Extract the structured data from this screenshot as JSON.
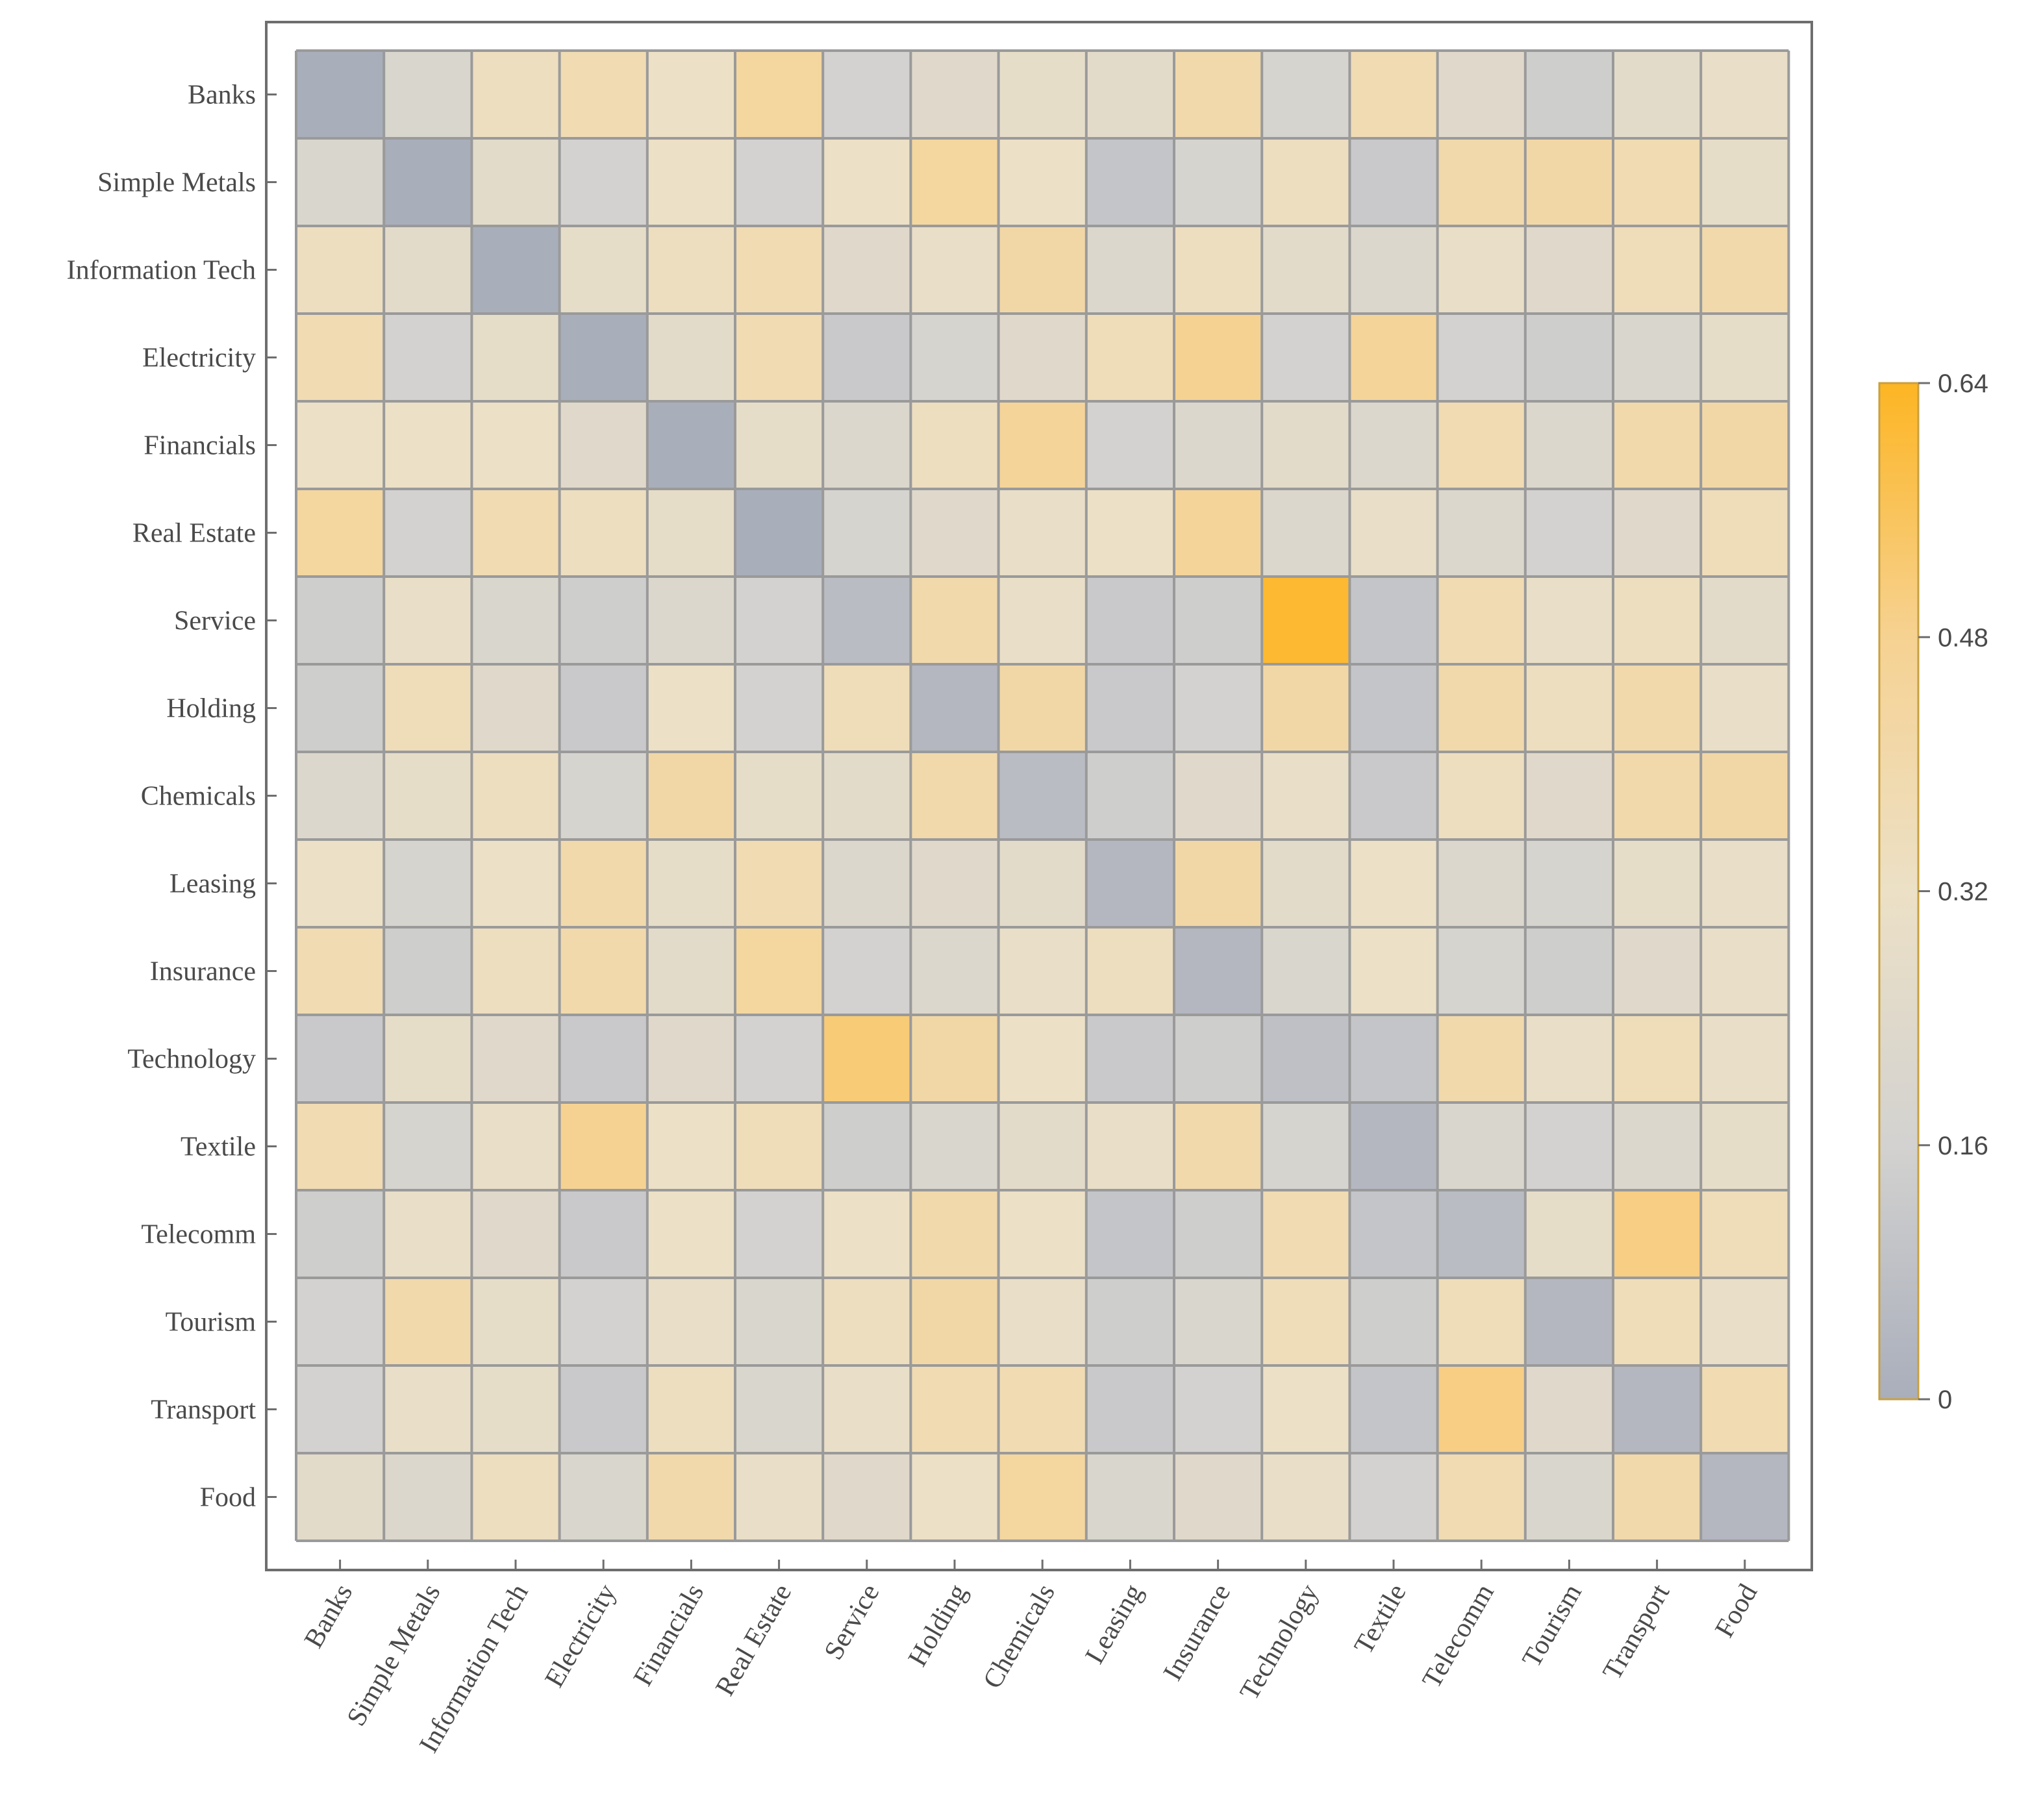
{
  "chart_data": {
    "type": "heatmap",
    "title": "",
    "xlabel": "",
    "ylabel": "",
    "rows": [
      "Banks",
      "Simple Metals",
      "Information Tech",
      "Electricity",
      "Financials",
      "Real Estate",
      "Service",
      "Holding",
      "Chemicals",
      "Leasing",
      "Insurance",
      "Technology",
      "Textile",
      "Telecomm",
      "Tourism",
      "Transport",
      "Food"
    ],
    "columns": [
      "Banks",
      "Simple Metals",
      "Information Tech",
      "Electricity",
      "Financials",
      "Real Estate",
      "Service",
      "Holding",
      "Chemicals",
      "Leasing",
      "Insurance",
      "Technology",
      "Textile",
      "Telecomm",
      "Tourism",
      "Transport",
      "Food"
    ],
    "values": [
      [
        0.0,
        0.2,
        0.34,
        0.38,
        0.32,
        0.44,
        0.16,
        0.24,
        0.28,
        0.26,
        0.4,
        0.18,
        0.38,
        0.24,
        0.14,
        0.26,
        0.3
      ],
      [
        0.2,
        0.0,
        0.26,
        0.16,
        0.32,
        0.16,
        0.32,
        0.44,
        0.32,
        0.1,
        0.18,
        0.34,
        0.12,
        0.4,
        0.42,
        0.38,
        0.28
      ],
      [
        0.34,
        0.26,
        0.0,
        0.28,
        0.34,
        0.38,
        0.24,
        0.3,
        0.42,
        0.22,
        0.34,
        0.26,
        0.22,
        0.3,
        0.24,
        0.36,
        0.4
      ],
      [
        0.38,
        0.16,
        0.28,
        0.0,
        0.26,
        0.38,
        0.12,
        0.18,
        0.24,
        0.36,
        0.48,
        0.16,
        0.46,
        0.16,
        0.14,
        0.2,
        0.28
      ],
      [
        0.32,
        0.32,
        0.32,
        0.24,
        0.0,
        0.28,
        0.22,
        0.34,
        0.46,
        0.16,
        0.22,
        0.26,
        0.22,
        0.38,
        0.22,
        0.4,
        0.42
      ],
      [
        0.44,
        0.16,
        0.38,
        0.34,
        0.28,
        0.0,
        0.18,
        0.24,
        0.3,
        0.32,
        0.46,
        0.22,
        0.3,
        0.22,
        0.16,
        0.24,
        0.36
      ],
      [
        0.14,
        0.3,
        0.2,
        0.14,
        0.22,
        0.16,
        0.06,
        0.4,
        0.3,
        0.12,
        0.14,
        0.62,
        0.1,
        0.38,
        0.3,
        0.34,
        0.26
      ],
      [
        0.14,
        0.36,
        0.24,
        0.12,
        0.32,
        0.16,
        0.36,
        0.04,
        0.42,
        0.12,
        0.16,
        0.42,
        0.1,
        0.4,
        0.34,
        0.4,
        0.3
      ],
      [
        0.22,
        0.28,
        0.34,
        0.18,
        0.42,
        0.28,
        0.26,
        0.4,
        0.06,
        0.14,
        0.24,
        0.3,
        0.12,
        0.34,
        0.24,
        0.4,
        0.42
      ],
      [
        0.32,
        0.18,
        0.32,
        0.4,
        0.28,
        0.38,
        0.22,
        0.24,
        0.26,
        0.04,
        0.42,
        0.26,
        0.32,
        0.22,
        0.18,
        0.28,
        0.3
      ],
      [
        0.38,
        0.14,
        0.34,
        0.4,
        0.26,
        0.44,
        0.16,
        0.22,
        0.3,
        0.34,
        0.04,
        0.2,
        0.32,
        0.18,
        0.14,
        0.24,
        0.3
      ],
      [
        0.12,
        0.28,
        0.24,
        0.12,
        0.24,
        0.16,
        0.52,
        0.42,
        0.32,
        0.12,
        0.14,
        0.08,
        0.1,
        0.4,
        0.3,
        0.36,
        0.3
      ],
      [
        0.38,
        0.18,
        0.3,
        0.48,
        0.32,
        0.36,
        0.14,
        0.2,
        0.26,
        0.3,
        0.4,
        0.18,
        0.04,
        0.2,
        0.16,
        0.22,
        0.28
      ],
      [
        0.14,
        0.3,
        0.24,
        0.12,
        0.32,
        0.16,
        0.32,
        0.4,
        0.32,
        0.1,
        0.14,
        0.38,
        0.1,
        0.06,
        0.28,
        0.5,
        0.36
      ],
      [
        0.16,
        0.4,
        0.28,
        0.16,
        0.3,
        0.2,
        0.34,
        0.42,
        0.3,
        0.14,
        0.2,
        0.36,
        0.14,
        0.36,
        0.04,
        0.36,
        0.3
      ],
      [
        0.16,
        0.3,
        0.28,
        0.12,
        0.34,
        0.2,
        0.3,
        0.38,
        0.38,
        0.12,
        0.16,
        0.32,
        0.1,
        0.5,
        0.24,
        0.04,
        0.38
      ],
      [
        0.26,
        0.22,
        0.34,
        0.2,
        0.4,
        0.3,
        0.24,
        0.32,
        0.44,
        0.2,
        0.24,
        0.3,
        0.16,
        0.38,
        0.2,
        0.4,
        0.04
      ]
    ],
    "colorbar": {
      "range": [
        0,
        0.64
      ],
      "ticks": [
        0,
        0.16,
        0.32,
        0.48,
        0.64
      ],
      "tick_labels": [
        "0",
        "0.16",
        "0.32",
        "0.48",
        "0.64"
      ],
      "colors": [
        "#a9aebb",
        "#d3d2d0",
        "#ece0c6",
        "#f6d292",
        "#fdb523"
      ]
    },
    "legend_position": "right",
    "grid": true
  }
}
